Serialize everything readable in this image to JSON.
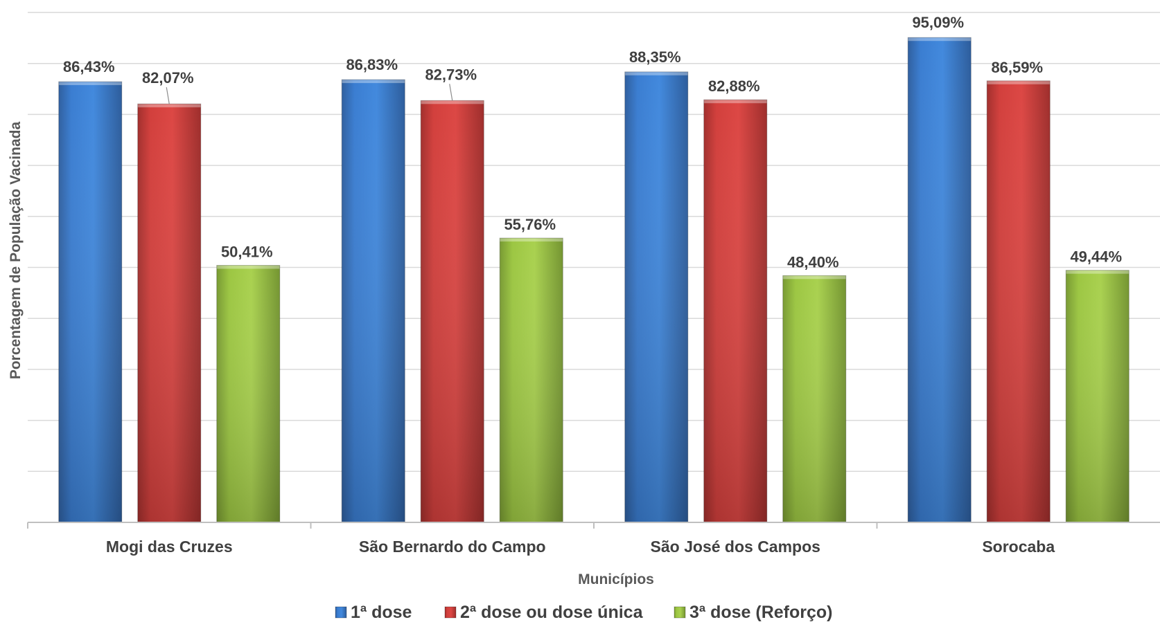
{
  "chart_data": {
    "type": "bar",
    "title": "",
    "xlabel": "Municípios",
    "ylabel": "Porcentagem de População Vacinada",
    "categories": [
      "Mogi das Cruzes",
      "São Bernardo do Campo",
      "São José dos Campos",
      "Sorocaba"
    ],
    "series": [
      {
        "name": "1ª dose",
        "values": [
          86.43,
          86.83,
          88.35,
          95.09
        ],
        "labels": [
          "86,43%",
          "86,83%",
          "88,35%",
          "95,09%"
        ],
        "color": "#3A7DD1"
      },
      {
        "name": "2ª dose ou dose única",
        "values": [
          82.07,
          82.73,
          82.88,
          86.59
        ],
        "labels": [
          "82,07%",
          "82,73%",
          "82,88%",
          "86,59%"
        ],
        "color": "#D23F3C"
      },
      {
        "name": "3ª dose (Reforço)",
        "values": [
          50.41,
          55.76,
          48.4,
          49.44
        ],
        "labels": [
          "50,41%",
          "55,76%",
          "48,40%",
          "49,44%"
        ],
        "color": "#9CC642"
      }
    ],
    "ylim": [
      0,
      100
    ],
    "y_gridline_step": 10,
    "show_y_tick_labels": false,
    "grid": true,
    "legend_position": "bottom"
  }
}
